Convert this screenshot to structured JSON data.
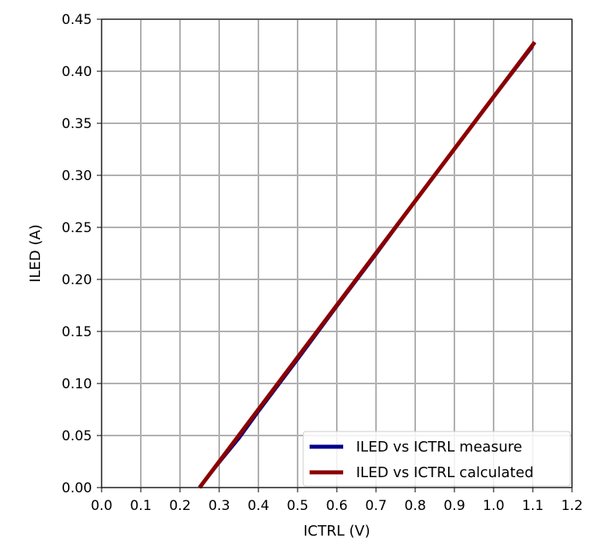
{
  "chart_data": {
    "type": "line",
    "title": "",
    "xlabel": "ICTRL (V)",
    "ylabel": "ILED (A)",
    "xlim": [
      0.0,
      1.2
    ],
    "ylim": [
      0.0,
      0.45
    ],
    "xticks": [
      "0.0",
      "0.1",
      "0.2",
      "0.3",
      "0.4",
      "0.5",
      "0.6",
      "0.7",
      "0.8",
      "0.9",
      "1.0",
      "1.1",
      "1.2"
    ],
    "yticks": [
      "0.00",
      "0.05",
      "0.10",
      "0.15",
      "0.20",
      "0.25",
      "0.30",
      "0.35",
      "0.40",
      "0.45"
    ],
    "grid": true,
    "legend_position": "lower-right",
    "series": [
      {
        "name": "ILED vs ICTRL measure",
        "color": "#00008b",
        "x": [
          0.25,
          0.3,
          0.35,
          0.4,
          0.5,
          0.6,
          0.7,
          0.8,
          0.9,
          1.0,
          1.1
        ],
        "y": [
          0.0,
          0.024,
          0.047,
          0.073,
          0.123,
          0.174,
          0.224,
          0.275,
          0.325,
          0.375,
          0.424
        ]
      },
      {
        "name": "ILED vs ICTRL calculated",
        "color": "#8b0000",
        "x": [
          0.25,
          1.105
        ],
        "y": [
          0.0,
          0.428
        ]
      }
    ]
  }
}
